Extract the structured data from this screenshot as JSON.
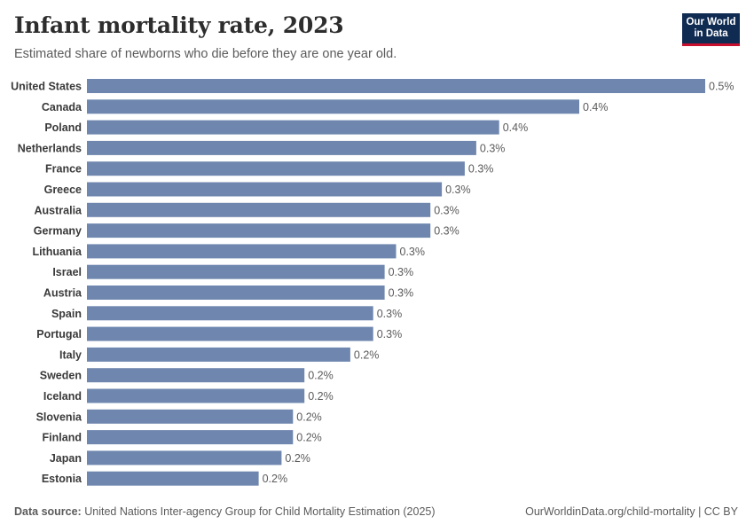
{
  "header": {
    "title": "Infant mortality rate, 2023",
    "subtitle": "Estimated share of newborns who die before they are one year old."
  },
  "logo": {
    "line1": "Our World",
    "line2": "in Data"
  },
  "footer": {
    "source_label": "Data source:",
    "source_text": "United Nations Inter-agency Group for Child Mortality Estimation (2025)",
    "link_text": "OurWorldinData.org/child-mortality | CC BY"
  },
  "colors": {
    "bar": "#6f87af",
    "logo_bg": "#0f2b52",
    "logo_accent": "#c8102e"
  },
  "chart_data": {
    "type": "bar",
    "orientation": "horizontal",
    "title": "Infant mortality rate, 2023",
    "subtitle": "Estimated share of newborns who die before they are one year old.",
    "unit": "%",
    "categories": [
      "United States",
      "Canada",
      "Poland",
      "Netherlands",
      "France",
      "Greece",
      "Australia",
      "Germany",
      "Lithuania",
      "Israel",
      "Austria",
      "Spain",
      "Portugal",
      "Italy",
      "Sweden",
      "Iceland",
      "Slovenia",
      "Finland",
      "Japan",
      "Estonia"
    ],
    "values": [
      0.54,
      0.43,
      0.36,
      0.34,
      0.33,
      0.31,
      0.3,
      0.3,
      0.27,
      0.26,
      0.26,
      0.25,
      0.25,
      0.23,
      0.19,
      0.19,
      0.18,
      0.18,
      0.17,
      0.15
    ],
    "value_labels": [
      "0.5%",
      "0.4%",
      "0.4%",
      "0.3%",
      "0.3%",
      "0.3%",
      "0.3%",
      "0.3%",
      "0.3%",
      "0.3%",
      "0.3%",
      "0.3%",
      "0.3%",
      "0.2%",
      "0.2%",
      "0.2%",
      "0.2%",
      "0.2%",
      "0.2%",
      "0.2%"
    ],
    "xlim": [
      0,
      0.54
    ],
    "grid": false,
    "legend": "none"
  }
}
